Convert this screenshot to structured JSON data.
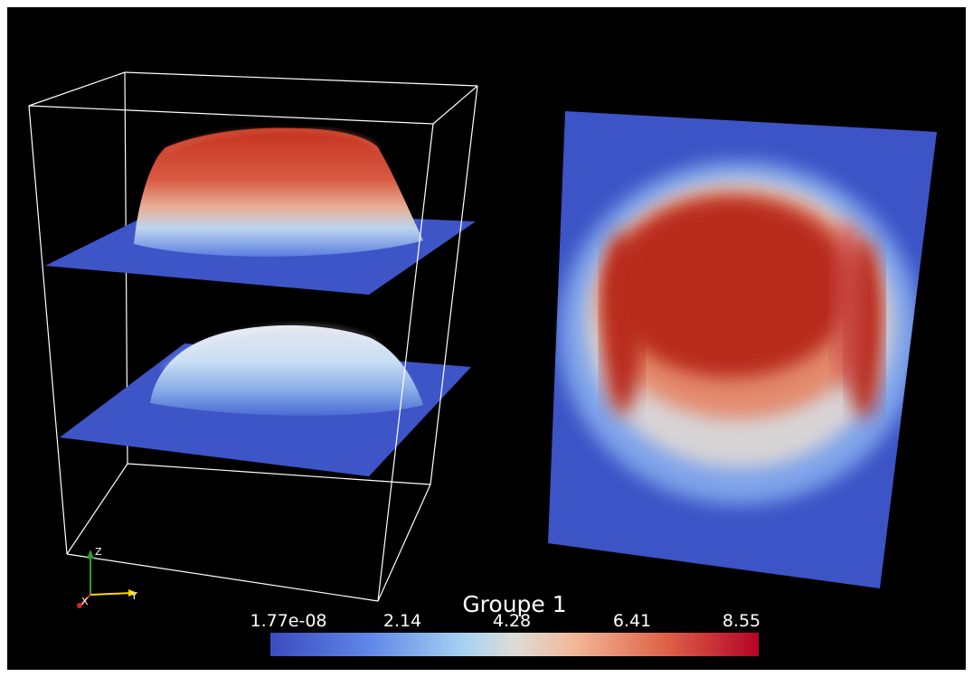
{
  "colorbar": {
    "title": "Groupe 1",
    "labels": [
      "1.77e-08",
      "2.14",
      "4.28",
      "6.41",
      "8.55"
    ],
    "min": 1.77e-08,
    "max": 8.55
  },
  "axes": {
    "x": "X",
    "y": "Y",
    "z": "Z"
  },
  "colors": {
    "background": "#000000",
    "low": "#3b4cc0",
    "mid": "#dddcd6",
    "high": "#b40426",
    "axis_x": "#d62728",
    "axis_y": "#ffd700",
    "axis_z": "#2ca02c"
  }
}
